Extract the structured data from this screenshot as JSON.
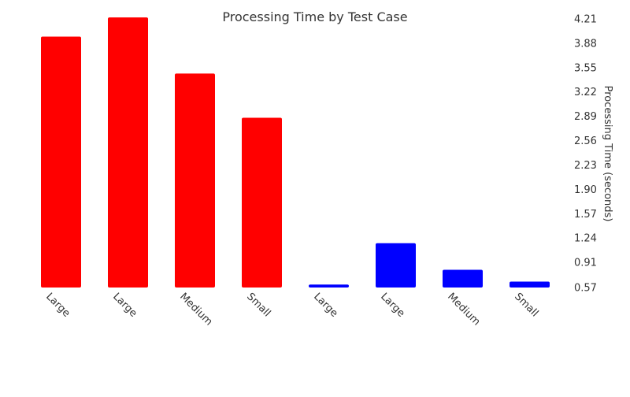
{
  "chart_data": {
    "type": "bar",
    "title": "Processing Time by Test Case",
    "xlabel": "",
    "ylabel": "Processing Time (seconds)",
    "y_axis_position": "right",
    "grid": false,
    "legend": "none",
    "ylim": [
      0.57,
      4.21
    ],
    "yticks": [
      "0.57",
      "0.91",
      "1.24",
      "1.57",
      "1.90",
      "2.23",
      "2.56",
      "2.89",
      "3.22",
      "3.55",
      "3.88",
      "4.21"
    ],
    "categories": [
      "Large",
      "Large",
      "Medium",
      "Small",
      "Large",
      "Large",
      "Medium",
      "Small"
    ],
    "values": [
      3.97,
      4.23,
      3.47,
      2.87,
      0.61,
      1.17,
      0.81,
      0.65
    ],
    "colors": [
      "#ff0000",
      "#ff0000",
      "#ff0000",
      "#ff0000",
      "#0000ff",
      "#0000ff",
      "#0000ff",
      "#0000ff"
    ]
  }
}
